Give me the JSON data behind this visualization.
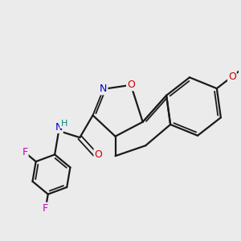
{
  "background_color": "#ebebeb",
  "bond_color": "#1a1a1a",
  "atom_colors": {
    "N": "#0000cc",
    "O": "#cc0000",
    "F": "#cc00cc",
    "H": "#008888",
    "C": "#1a1a1a"
  },
  "figsize": [
    3.0,
    3.0
  ],
  "dpi": 100,
  "lw": 1.6,
  "lw2": 1.3
}
